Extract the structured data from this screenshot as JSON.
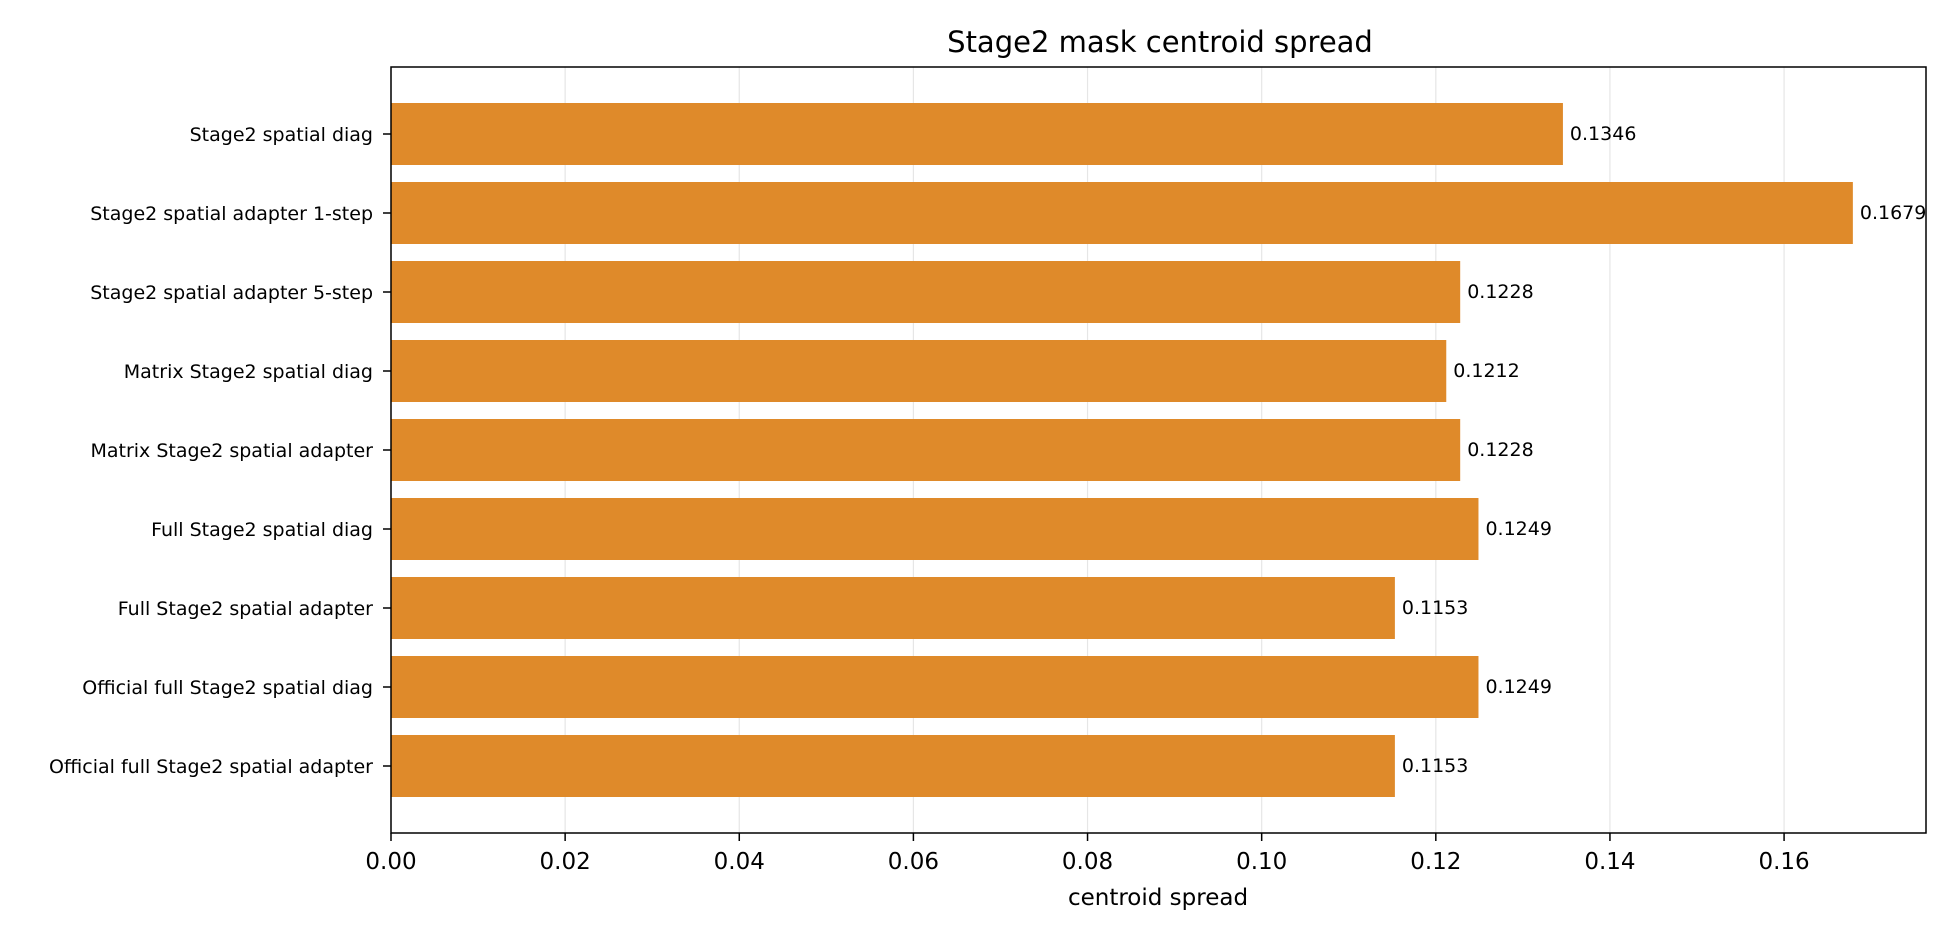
{
  "chart_data": {
    "type": "bar",
    "orientation": "horizontal",
    "title": "Stage2 mask centroid spread",
    "xlabel": "centroid spread",
    "ylabel": "",
    "xlim": [
      0,
      0.1763
    ],
    "xticks": [
      "0.00",
      "0.02",
      "0.04",
      "0.06",
      "0.08",
      "0.10",
      "0.12",
      "0.14",
      "0.16"
    ],
    "grid": "vertical",
    "bar_color": "#df8a2a",
    "categories": [
      "Stage2 spatial diag",
      "Stage2 spatial adapter 1-step",
      "Stage2 spatial adapter 5-step",
      "Matrix Stage2 spatial diag",
      "Matrix Stage2 spatial adapter",
      "Full Stage2 spatial diag",
      "Full Stage2 spatial adapter",
      "Official full Stage2 spatial diag",
      "Official full Stage2 spatial adapter"
    ],
    "values": [
      0.1346,
      0.1679,
      0.1228,
      0.1212,
      0.1228,
      0.1249,
      0.1153,
      0.1249,
      0.1153
    ],
    "value_labels": [
      "0.1346",
      "0.1679",
      "0.1228",
      "0.1212",
      "0.1228",
      "0.1249",
      "0.1153",
      "0.1249",
      "0.1153"
    ]
  }
}
